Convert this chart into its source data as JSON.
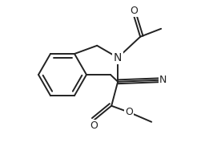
{
  "bg_color": "#ffffff",
  "line_color": "#222222",
  "line_width": 1.4,
  "font_size": 9,
  "figsize": [
    2.66,
    1.88
  ],
  "dpi": 100,
  "xlim": [
    0,
    266
  ],
  "ylim": [
    0,
    188
  ]
}
